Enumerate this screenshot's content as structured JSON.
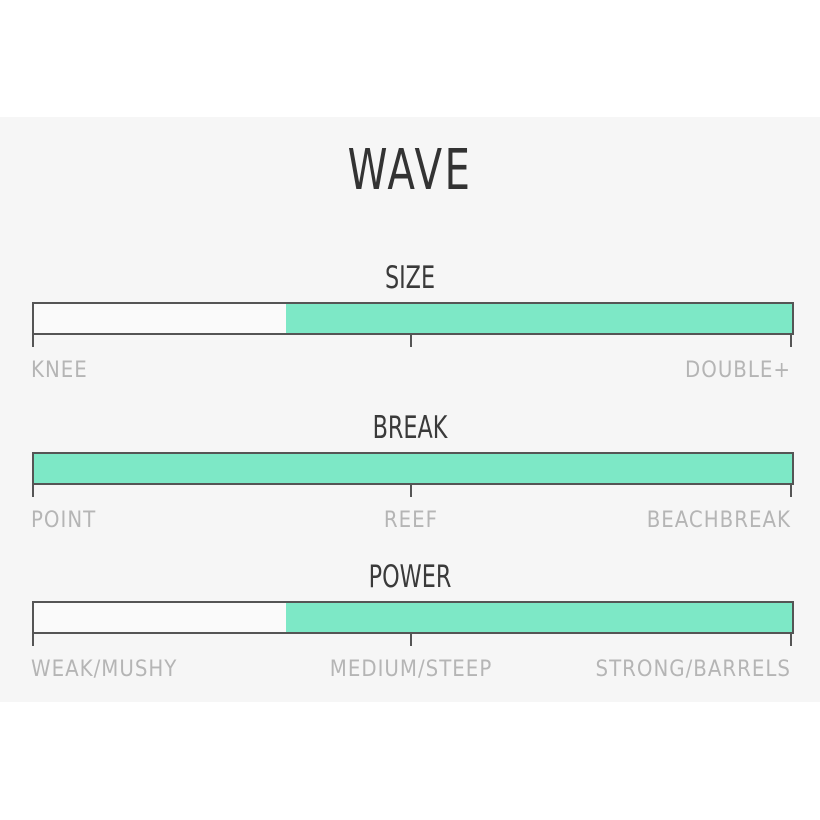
{
  "title": "WAVE",
  "chart_data": [
    {
      "type": "bar",
      "label": "SIZE",
      "scale_labels": [
        "KNEE",
        "",
        "DOUBLE+"
      ],
      "range": [
        0.333,
        1.0
      ],
      "fill_color": "#7de8c6"
    },
    {
      "type": "bar",
      "label": "BREAK",
      "scale_labels": [
        "POINT",
        "REEF",
        "BEACHBREAK"
      ],
      "range": [
        0.0,
        1.0
      ],
      "fill_color": "#7de8c6"
    },
    {
      "type": "bar",
      "label": "POWER",
      "scale_labels": [
        "WEAK/MUSHY",
        "MEDIUM/STEEP",
        "STRONG/BARRELS"
      ],
      "range": [
        0.333,
        1.0
      ],
      "fill_color": "#7de8c6"
    }
  ]
}
